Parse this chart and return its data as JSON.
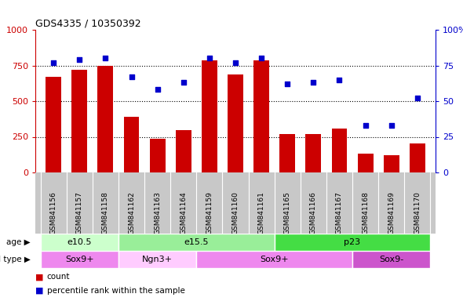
{
  "title": "GDS4335 / 10350392",
  "samples": [
    "GSM841156",
    "GSM841157",
    "GSM841158",
    "GSM841162",
    "GSM841163",
    "GSM841164",
    "GSM841159",
    "GSM841160",
    "GSM841161",
    "GSM841165",
    "GSM841166",
    "GSM841167",
    "GSM841168",
    "GSM841169",
    "GSM841170"
  ],
  "counts": [
    670,
    720,
    745,
    390,
    235,
    295,
    785,
    685,
    785,
    270,
    270,
    305,
    130,
    120,
    205
  ],
  "percentiles": [
    77,
    79,
    80,
    67,
    58,
    63,
    80,
    77,
    80,
    62,
    63,
    65,
    33,
    33,
    52
  ],
  "ylim_left": [
    0,
    1000
  ],
  "ylim_right": [
    0,
    100
  ],
  "yticks_left": [
    0,
    250,
    500,
    750,
    1000
  ],
  "yticks_right": [
    0,
    25,
    50,
    75,
    100
  ],
  "bar_color": "#cc0000",
  "scatter_color": "#0000cc",
  "age_groups": [
    {
      "label": "e10.5",
      "start": 0,
      "end": 3,
      "color": "#ccffcc"
    },
    {
      "label": "e15.5",
      "start": 3,
      "end": 9,
      "color": "#99ee99"
    },
    {
      "label": "p23",
      "start": 9,
      "end": 15,
      "color": "#44dd44"
    }
  ],
  "cell_type_groups": [
    {
      "label": "Sox9+",
      "start": 0,
      "end": 3,
      "color": "#ee88ee"
    },
    {
      "label": "Ngn3+",
      "start": 3,
      "end": 6,
      "color": "#ffccff"
    },
    {
      "label": "Sox9+",
      "start": 6,
      "end": 12,
      "color": "#ee88ee"
    },
    {
      "label": "Sox9-",
      "start": 12,
      "end": 15,
      "color": "#cc55cc"
    }
  ],
  "left_axis_color": "#cc0000",
  "right_axis_color": "#0000cc",
  "grid_color": "#000000",
  "background_label": "#c8c8c8",
  "legend_items": [
    {
      "color": "#cc0000",
      "label": "count"
    },
    {
      "color": "#0000cc",
      "label": "percentile rank within the sample"
    }
  ]
}
